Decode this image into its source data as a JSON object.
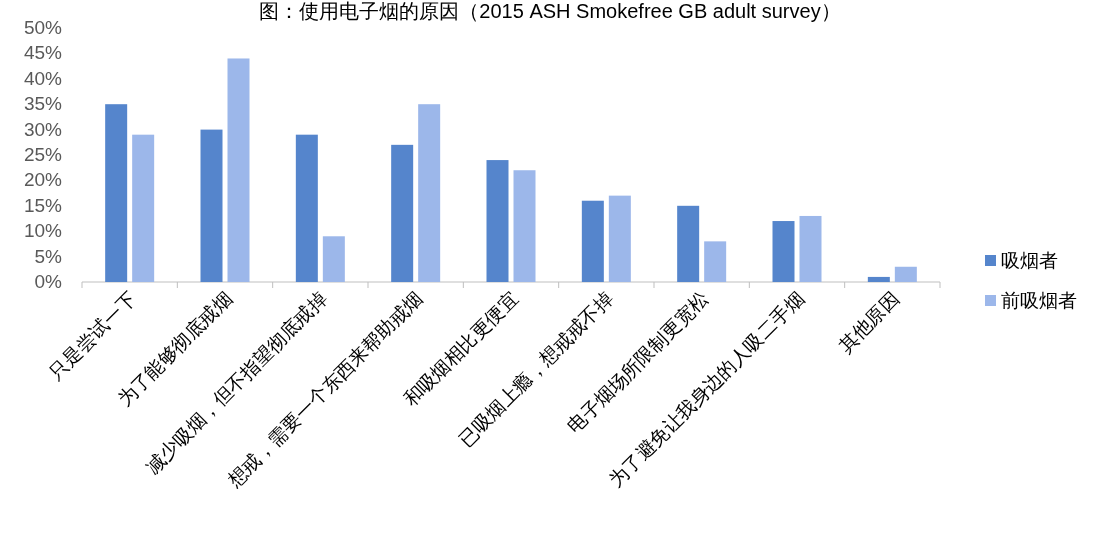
{
  "chart_data": {
    "type": "bar",
    "title": "图：使用电子烟的原因（2015 ASH Smokefree GB adult survey）",
    "categories": [
      "只是尝试一下",
      "为了能够彻底戒烟",
      "减少吸烟，但不指望彻底戒掉",
      "想戒，需要一个东西来帮助戒烟",
      "和吸烟相比更便宜",
      "已吸烟上瘾，想戒戒不掉",
      "电子烟场所限制更宽松",
      "为了避免让我身边的人吸二手烟",
      "其他原因"
    ],
    "series": [
      {
        "name": "吸烟者",
        "color": "#5585cc",
        "values": [
          35,
          30,
          29,
          27,
          24,
          16,
          15,
          12,
          1
        ]
      },
      {
        "name": "前吸烟者",
        "color": "#9cb7ea",
        "values": [
          29,
          44,
          9,
          35,
          22,
          17,
          8,
          13,
          3
        ]
      }
    ],
    "ylim": [
      0,
      50
    ],
    "yticks": [
      {
        "value": 0,
        "label": "0%"
      },
      {
        "value": 5,
        "label": "5%"
      },
      {
        "value": 10,
        "label": "10%"
      },
      {
        "value": 15,
        "label": "15%"
      },
      {
        "value": 20,
        "label": "20%"
      },
      {
        "value": 25,
        "label": "25%"
      },
      {
        "value": 30,
        "label": "30%"
      },
      {
        "value": 35,
        "label": "35%"
      },
      {
        "value": 40,
        "label": "40%"
      },
      {
        "value": 45,
        "label": "45%"
      },
      {
        "value": 50,
        "label": "50%"
      }
    ],
    "legend": "right"
  }
}
